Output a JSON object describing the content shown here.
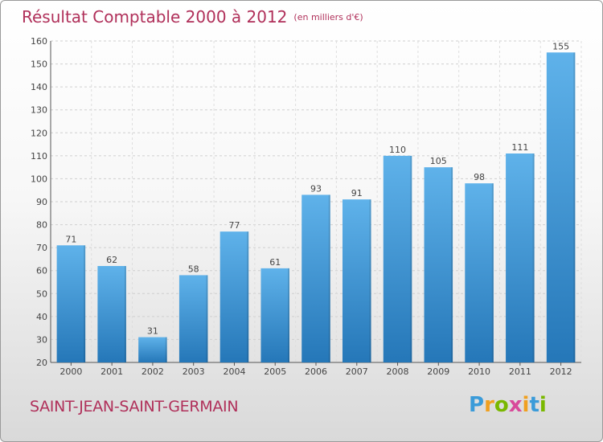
{
  "title": "Résultat Comptable 2000 à 2012",
  "unit": "(en milliers d'€)",
  "commune": "SAINT-JEAN-SAINT-GERMAIN",
  "brand": {
    "letters": [
      "P",
      "r",
      "o",
      "x",
      "i",
      "t",
      "i"
    ],
    "colors": [
      "#3a9bd9",
      "#f0a020",
      "#7ab800",
      "#d84a9a",
      "#f0a020",
      "#3a9bd9",
      "#7ab800"
    ]
  },
  "chart_data": {
    "type": "bar",
    "categories": [
      "2000",
      "2001",
      "2002",
      "2003",
      "2004",
      "2005",
      "2006",
      "2007",
      "2008",
      "2009",
      "2010",
      "2011",
      "2012"
    ],
    "values": [
      71,
      62,
      31,
      58,
      77,
      61,
      93,
      91,
      110,
      105,
      98,
      111,
      155
    ],
    "ylim": [
      20,
      160
    ],
    "yticks": [
      20,
      30,
      40,
      50,
      60,
      70,
      80,
      90,
      100,
      110,
      120,
      130,
      140,
      150,
      160
    ],
    "grid": true,
    "bar_color_top": "#5fb2ea",
    "bar_color_bottom": "#2577b8"
  }
}
